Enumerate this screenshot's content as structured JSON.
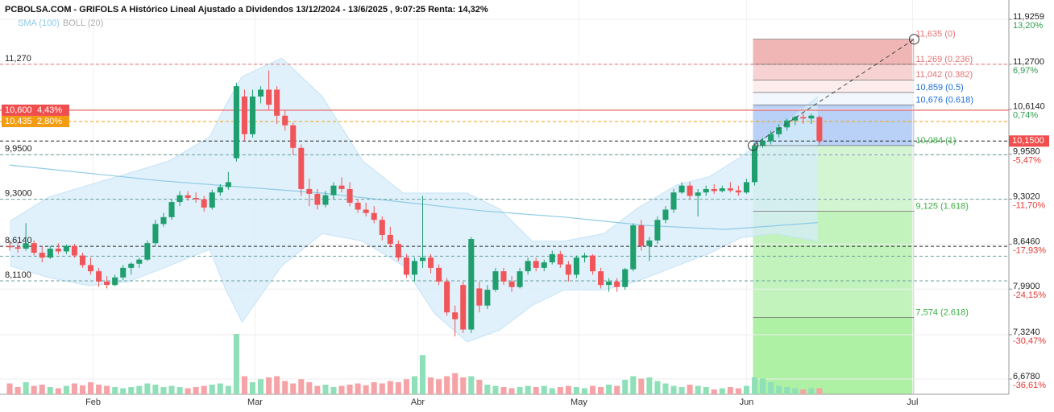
{
  "chart_data": {
    "type": "candlestick",
    "title": "PCBOLSA.COM - GRIFOLS A Histórico Lineal Ajustado a Dividendos 13/12/2024 - 13/6/2025 , 9:07:25 Renta: 14,32%",
    "xlim": [
      -1.2,
      123.4
    ],
    "ylim": [
      6.455,
      12.208
    ],
    "vlim": [
      0,
      100
    ],
    "grid": true,
    "xticks": [
      {
        "value": 10.3,
        "label": "Feb"
      },
      {
        "value": 30.3,
        "label": "Mar"
      },
      {
        "value": 50.4,
        "label": "Abr"
      },
      {
        "value": 70.3,
        "label": "May"
      },
      {
        "value": 91,
        "label": "Jun"
      },
      {
        "value": 111.5,
        "label": "Jul"
      }
    ],
    "yticks": [
      {
        "value": 11.9259,
        "label": "11,9259"
      },
      {
        "value": 11.27,
        "label": "11,2700"
      },
      {
        "value": 10.614,
        "label": "10,6140"
      },
      {
        "value": 9.958,
        "label": "9,9580"
      },
      {
        "value": 9.302,
        "label": "9,3020"
      },
      {
        "value": 8.646,
        "label": "8,6460"
      },
      {
        "value": 7.99,
        "label": "7,9900"
      },
      {
        "value": 7.324,
        "label": "7,3240"
      },
      {
        "value": 6.678,
        "label": "6,6780"
      }
    ],
    "ytick_pct": [
      {
        "label": "13,20%",
        "color": "#2e9e4e"
      },
      {
        "label": "6,97%",
        "color": "#2e9e4e"
      },
      {
        "label": "0,74%",
        "color": "#2e9e4e"
      },
      {
        "label": "-5,47%",
        "color": "#e53935"
      },
      {
        "label": "-11,70%",
        "color": "#e53935"
      },
      {
        "label": "-17,93%",
        "color": "#e53935"
      },
      {
        "label": "-24,15%",
        "color": "#e53935"
      },
      {
        "label": "-30,47%",
        "color": "#e53935"
      },
      {
        "label": "-36,61%",
        "color": "#e53935"
      }
    ],
    "up_color": "#1f9e6e",
    "down_color": "#f0555a",
    "vol_up_color": "#8fe0b8",
    "vol_down_color": "#f5a3a6",
    "ohlc": [
      [
        8.62,
        8.7,
        8.55,
        8.6
      ],
      [
        8.6,
        8.68,
        8.52,
        8.58
      ],
      [
        8.58,
        8.95,
        8.55,
        8.66
      ],
      [
        8.66,
        8.7,
        8.48,
        8.52
      ],
      [
        8.52,
        8.62,
        8.38,
        8.45
      ],
      [
        8.45,
        8.62,
        8.43,
        8.58
      ],
      [
        8.58,
        8.66,
        8.5,
        8.54
      ],
      [
        8.54,
        8.64,
        8.5,
        8.62
      ],
      [
        8.62,
        8.65,
        8.45,
        8.48
      ],
      [
        8.48,
        8.52,
        8.3,
        8.34
      ],
      [
        8.34,
        8.45,
        8.2,
        8.25
      ],
      [
        8.25,
        8.3,
        8.02,
        8.1
      ],
      [
        8.1,
        8.18,
        8.0,
        8.05
      ],
      [
        8.05,
        8.2,
        8.03,
        8.16
      ],
      [
        8.16,
        8.34,
        8.12,
        8.3
      ],
      [
        8.3,
        8.38,
        8.2,
        8.36
      ],
      [
        8.36,
        8.45,
        8.3,
        8.42
      ],
      [
        8.42,
        8.7,
        8.4,
        8.66
      ],
      [
        8.66,
        9.0,
        8.62,
        8.94
      ],
      [
        8.94,
        9.1,
        8.9,
        9.04
      ],
      [
        9.04,
        9.3,
        9.0,
        9.26
      ],
      [
        9.26,
        9.42,
        9.2,
        9.36
      ],
      [
        9.36,
        9.42,
        9.28,
        9.32
      ],
      [
        9.32,
        9.4,
        9.25,
        9.3
      ],
      [
        9.3,
        9.35,
        9.12,
        9.18
      ],
      [
        9.18,
        9.44,
        9.15,
        9.4
      ],
      [
        9.4,
        9.52,
        9.35,
        9.48
      ],
      [
        9.48,
        9.7,
        9.44,
        9.55
      ],
      [
        9.9,
        11.0,
        9.85,
        10.95
      ],
      [
        10.8,
        10.9,
        10.15,
        10.25
      ],
      [
        10.25,
        10.9,
        10.2,
        10.8
      ],
      [
        10.8,
        10.95,
        10.7,
        10.9
      ],
      [
        10.9,
        11.18,
        10.6,
        10.68
      ],
      [
        10.9,
        10.95,
        10.4,
        10.52
      ],
      [
        10.52,
        10.6,
        10.3,
        10.38
      ],
      [
        10.38,
        10.42,
        9.95,
        10.05
      ],
      [
        10.05,
        10.1,
        9.35,
        9.45
      ],
      [
        9.45,
        9.6,
        9.2,
        9.38
      ],
      [
        9.38,
        9.45,
        9.15,
        9.22
      ],
      [
        9.22,
        9.42,
        9.18,
        9.36
      ],
      [
        9.36,
        9.55,
        9.3,
        9.5
      ],
      [
        9.5,
        9.62,
        9.4,
        9.45
      ],
      [
        9.45,
        9.55,
        9.2,
        9.25
      ],
      [
        9.25,
        9.3,
        9.1,
        9.15
      ],
      [
        9.15,
        9.25,
        9.05,
        9.1
      ],
      [
        9.1,
        9.2,
        8.95,
        9.0
      ],
      [
        9.0,
        9.05,
        8.7,
        8.78
      ],
      [
        8.78,
        8.9,
        8.6,
        8.65
      ],
      [
        8.65,
        8.7,
        8.4,
        8.45
      ],
      [
        8.45,
        8.5,
        8.15,
        8.2
      ],
      [
        8.2,
        8.45,
        8.1,
        8.4
      ],
      [
        8.4,
        9.35,
        8.3,
        8.45
      ],
      [
        8.45,
        8.5,
        8.22,
        8.3
      ],
      [
        8.3,
        8.35,
        8.05,
        8.1
      ],
      [
        8.1,
        8.15,
        7.6,
        7.65
      ],
      [
        7.65,
        7.75,
        7.3,
        7.55
      ],
      [
        8.05,
        8.1,
        7.35,
        7.4
      ],
      [
        7.4,
        8.75,
        7.35,
        8.72
      ],
      [
        8.0,
        8.1,
        7.65,
        7.75
      ],
      [
        7.75,
        8.05,
        7.7,
        7.98
      ],
      [
        7.98,
        8.3,
        7.95,
        8.25
      ],
      [
        8.25,
        8.3,
        8.05,
        8.1
      ],
      [
        8.1,
        8.18,
        7.95,
        8.02
      ],
      [
        8.02,
        8.3,
        8.0,
        8.25
      ],
      [
        8.25,
        8.45,
        8.2,
        8.4
      ],
      [
        8.4,
        8.45,
        8.25,
        8.3
      ],
      [
        8.3,
        8.42,
        8.25,
        8.38
      ],
      [
        8.38,
        8.55,
        8.35,
        8.5
      ],
      [
        8.5,
        8.55,
        8.3,
        8.35
      ],
      [
        8.35,
        8.4,
        8.1,
        8.2
      ],
      [
        8.2,
        8.48,
        8.15,
        8.45
      ],
      [
        8.45,
        8.52,
        8.38,
        8.48
      ],
      [
        8.48,
        8.5,
        8.2,
        8.25
      ],
      [
        8.25,
        8.3,
        8.0,
        8.05
      ],
      [
        8.05,
        8.15,
        7.95,
        8.1
      ],
      [
        8.1,
        8.15,
        7.95,
        8.02
      ],
      [
        8.02,
        8.3,
        7.98,
        8.28
      ],
      [
        8.28,
        8.95,
        8.25,
        8.92
      ],
      [
        8.92,
        9.0,
        8.55,
        8.62
      ],
      [
        8.62,
        8.75,
        8.4,
        8.7
      ],
      [
        8.7,
        9.05,
        8.65,
        9.0
      ],
      [
        9.0,
        9.2,
        8.95,
        9.15
      ],
      [
        9.15,
        9.45,
        9.1,
        9.4
      ],
      [
        9.4,
        9.55,
        9.38,
        9.5
      ],
      [
        9.5,
        9.55,
        9.3,
        9.35
      ],
      [
        9.35,
        9.45,
        9.05,
        9.4
      ],
      [
        9.4,
        9.5,
        9.35,
        9.45
      ],
      [
        9.45,
        9.52,
        9.38,
        9.42
      ],
      [
        9.42,
        9.5,
        9.4,
        9.46
      ],
      [
        9.46,
        9.55,
        9.4,
        9.43
      ],
      [
        9.43,
        9.5,
        9.35,
        9.4
      ],
      [
        9.4,
        9.6,
        9.38,
        9.55
      ],
      [
        9.55,
        10.12,
        9.5,
        10.08
      ],
      [
        10.08,
        10.2,
        10.05,
        10.15
      ],
      [
        10.15,
        10.3,
        10.1,
        10.25
      ],
      [
        10.25,
        10.4,
        10.2,
        10.35
      ],
      [
        10.35,
        10.48,
        10.3,
        10.45
      ],
      [
        10.45,
        10.52,
        10.38,
        10.5
      ],
      [
        10.5,
        10.55,
        10.4,
        10.48
      ],
      [
        10.48,
        10.55,
        10.4,
        10.52
      ],
      [
        10.5,
        10.52,
        10.1,
        10.15
      ]
    ],
    "volume": [
      18,
      12,
      20,
      14,
      16,
      12,
      10,
      14,
      18,
      15,
      20,
      16,
      14,
      12,
      10,
      12,
      14,
      18,
      16,
      12,
      14,
      12,
      10,
      12,
      14,
      16,
      18,
      14,
      100,
      30,
      20,
      25,
      28,
      30,
      22,
      18,
      25,
      20,
      14,
      16,
      12,
      14,
      16,
      18,
      15,
      20,
      18,
      22,
      20,
      25,
      30,
      65,
      28,
      25,
      30,
      35,
      28,
      30,
      24,
      16,
      14,
      12,
      10,
      12,
      14,
      12,
      14,
      10,
      12,
      14,
      12,
      10,
      14,
      12,
      16,
      14,
      24,
      30,
      26,
      28,
      22,
      18,
      14,
      12,
      16,
      14,
      12,
      8,
      10,
      12,
      10,
      14,
      28,
      26,
      20,
      14,
      12,
      10,
      8,
      10,
      10
    ],
    "sma": {
      "name": "SMA (100)",
      "color": "#8ecae6",
      "x": [
        0,
        18.7,
        38.6,
        58.5,
        68.5,
        78.4,
        88.4,
        99.8
      ],
      "values": [
        9.8,
        9.57,
        9.39,
        9.13,
        9.04,
        8.92,
        8.86,
        8.96
      ]
    },
    "boll": {
      "name": "BOLL (20)",
      "color": "#b0b0b0",
      "fill": "#d6ecfa",
      "x": [
        0,
        4.8,
        9.8,
        14.7,
        19.7,
        24.7,
        26.7,
        28.7,
        33.6,
        38.6,
        43.6,
        48.6,
        52.5,
        56.5,
        60.5,
        64.5,
        68.5,
        73.4,
        77.4,
        82.4,
        86.4,
        90.3,
        94.3,
        99.8
      ],
      "upper": [
        8.98,
        9.33,
        9.51,
        9.68,
        9.86,
        10.21,
        10.68,
        11.09,
        11.36,
        10.8,
        9.86,
        9.39,
        9.39,
        9.39,
        9.16,
        8.69,
        8.69,
        8.8,
        9.16,
        9.51,
        9.63,
        9.92,
        10.27,
        10.8
      ],
      "lower": [
        8.33,
        8.16,
        8.04,
        8.1,
        8.33,
        8.57,
        7.98,
        7.51,
        8.33,
        8.8,
        8.69,
        8.33,
        7.63,
        7.22,
        7.39,
        7.75,
        7.98,
        7.98,
        8.1,
        8.33,
        8.51,
        8.74,
        8.8,
        8.69
      ]
    },
    "levels": [
      {
        "value": 11.27,
        "label": "11,270",
        "color": "#e57373",
        "dash": true
      },
      {
        "value": 10.6,
        "label": "10,600",
        "pct": "4,43%",
        "color": "#f04e4e",
        "dash": false,
        "box": true
      },
      {
        "value": 10.435,
        "label": "10,435",
        "pct": "2,80%",
        "color": "#f39c12",
        "dash": true,
        "box": true
      },
      {
        "value": 10.15,
        "color": "#222222",
        "dash": true
      },
      {
        "value": 9.95,
        "label": "9,9500",
        "color": "#6aa0a0",
        "dash": true
      },
      {
        "value": 9.3,
        "label": "9,3000",
        "color": "#6aa0a0",
        "dash": true
      },
      {
        "value": 8.614,
        "label": "8,6140",
        "color": "#222222",
        "dash": true
      },
      {
        "value": 8.47,
        "color": "#6aa0a0",
        "dash": true
      },
      {
        "value": 8.11,
        "label": "8,1100",
        "color": "#6aa0a0",
        "dash": true
      }
    ],
    "last_price": {
      "value": 10.15,
      "label": "10,1500",
      "color": "#f04e4e"
    },
    "fib": {
      "x": [
        91.8,
        111.7
      ],
      "start": 10.084,
      "end": 11.635,
      "levels": [
        {
          "value": 11.635,
          "label": "11,635 (0)",
          "color": "#e57373",
          "fill": "#f0b6b6"
        },
        {
          "value": 11.269,
          "label": "11,269 (0.236)",
          "color": "#e57373",
          "fill": "#f7d2d2"
        },
        {
          "value": 11.042,
          "label": "11,042 (0.382)",
          "color": "#e57373",
          "fill": "#fcecec"
        },
        {
          "value": 10.859,
          "label": "10,859 (0.5)",
          "color": "#1e6fd9",
          "fill": "#f2f6fd"
        },
        {
          "value": 10.676,
          "label": "10,676 (0.618)",
          "color": "#1e6fd9",
          "fill": "#b9d1f7"
        },
        {
          "value": 10.084,
          "label": "10,084 (1)",
          "color": "#3cb043",
          "fill": "#d4f5d2"
        },
        {
          "value": 9.125,
          "label": "9,125 (1.618)",
          "color": "#3cb043",
          "fill": "#c2f3bd"
        },
        {
          "value": 7.574,
          "label": "7,574 (2.618)",
          "color": "#3cb043",
          "fill": "#aef0a4"
        }
      ]
    }
  }
}
